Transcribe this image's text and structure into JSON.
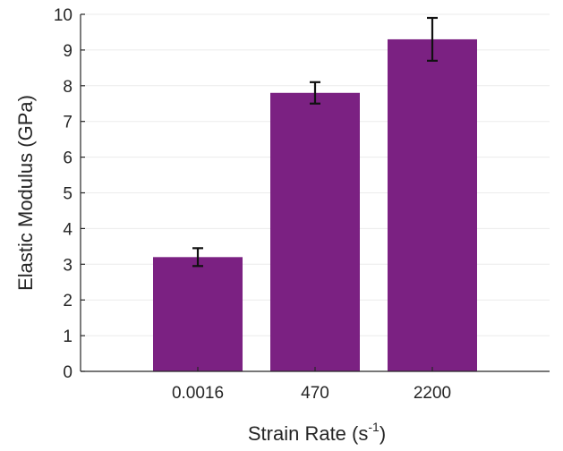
{
  "chart_data": {
    "type": "bar",
    "categories": [
      "0.0016",
      "470",
      "2200"
    ],
    "values": [
      3.2,
      7.8,
      9.3
    ],
    "error": [
      0.25,
      0.3,
      0.6
    ],
    "xlabel": "Strain Rate (s",
    "xlabel_superscript": "-1",
    "xlabel_suffix": ")",
    "ylabel": "Elastic Modulus (GPa)",
    "ylim": [
      0,
      10
    ],
    "yticks": [
      "0",
      "1",
      "2",
      "3",
      "4",
      "5",
      "6",
      "7",
      "8",
      "9",
      "10"
    ],
    "grid": true,
    "bar_color": "#7b2182",
    "error_bar_color": "#111111"
  }
}
